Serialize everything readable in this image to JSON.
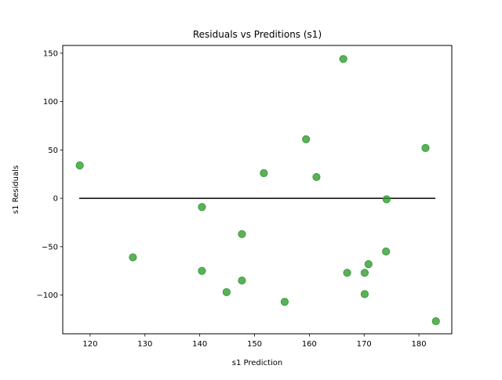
{
  "chart_data": {
    "type": "scatter",
    "title": "Residuals vs Preditions (s1)",
    "xlabel": "s1 Prediction",
    "ylabel": "s1 Residuals",
    "xlim": [
      115,
      186
    ],
    "ylim": [
      -140,
      158
    ],
    "xticks": [
      120,
      130,
      140,
      150,
      160,
      170,
      180
    ],
    "yticks": [
      -100,
      -50,
      0,
      50,
      100,
      150
    ],
    "ytick_labels": [
      "−100",
      "−50",
      "0",
      "50",
      "100",
      "150"
    ],
    "point_color": "#2e9a2e",
    "line_color": "#000000",
    "grid": false,
    "legend": "none",
    "reference_line": {
      "y": 0,
      "x_start": 118,
      "x_end": 183
    },
    "points": [
      {
        "x": 118.1,
        "y": 34
      },
      {
        "x": 127.8,
        "y": -61
      },
      {
        "x": 140.4,
        "y": -9
      },
      {
        "x": 140.4,
        "y": -75
      },
      {
        "x": 144.9,
        "y": -97
      },
      {
        "x": 147.7,
        "y": -37
      },
      {
        "x": 147.7,
        "y": -85
      },
      {
        "x": 151.7,
        "y": 26
      },
      {
        "x": 155.5,
        "y": -107
      },
      {
        "x": 159.4,
        "y": 61
      },
      {
        "x": 161.3,
        "y": 22
      },
      {
        "x": 166.2,
        "y": 144
      },
      {
        "x": 166.9,
        "y": -77
      },
      {
        "x": 170.1,
        "y": -77
      },
      {
        "x": 170.1,
        "y": -99
      },
      {
        "x": 170.8,
        "y": -68
      },
      {
        "x": 174.1,
        "y": -1
      },
      {
        "x": 174.0,
        "y": -55
      },
      {
        "x": 181.2,
        "y": 52
      },
      {
        "x": 183.1,
        "y": -127
      }
    ]
  }
}
